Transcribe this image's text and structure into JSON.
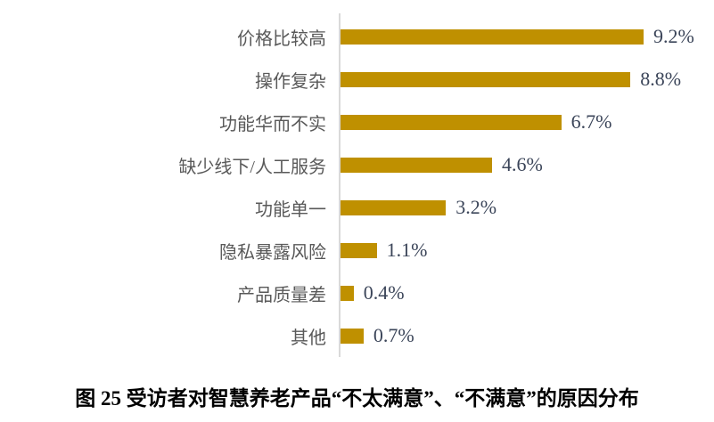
{
  "chart_data": {
    "type": "bar",
    "orientation": "horizontal",
    "title": "图 25 受访者对智慧养老产品“不太满意”、“不满意”的原因分布",
    "categories": [
      "价格比较高",
      "操作复杂",
      "功能华而不实",
      "缺少线下/人工服务",
      "功能单一",
      "隐私暴露风险",
      "产品质量差",
      "其他"
    ],
    "values": [
      9.2,
      8.8,
      6.7,
      4.6,
      3.2,
      1.1,
      0.4,
      0.7
    ],
    "value_labels": [
      "9.2%",
      "8.8%",
      "6.7%",
      "4.6%",
      "3.2%",
      "1.1%",
      "0.4%",
      "0.7%"
    ],
    "unit": "%",
    "xlim": [
      0,
      10
    ],
    "grid": false,
    "legend": false,
    "data_labels_position": "outside-end",
    "colors": {
      "bar": "#BF9000",
      "axis_line": "#D9D9D9",
      "category_label": "#595959",
      "value_label": "#3B4559",
      "background": "#FFFFFF"
    }
  },
  "caption": {
    "text": "图 25 受访者对智慧养老产品“不太满意”、“不满意”的原因分布"
  }
}
